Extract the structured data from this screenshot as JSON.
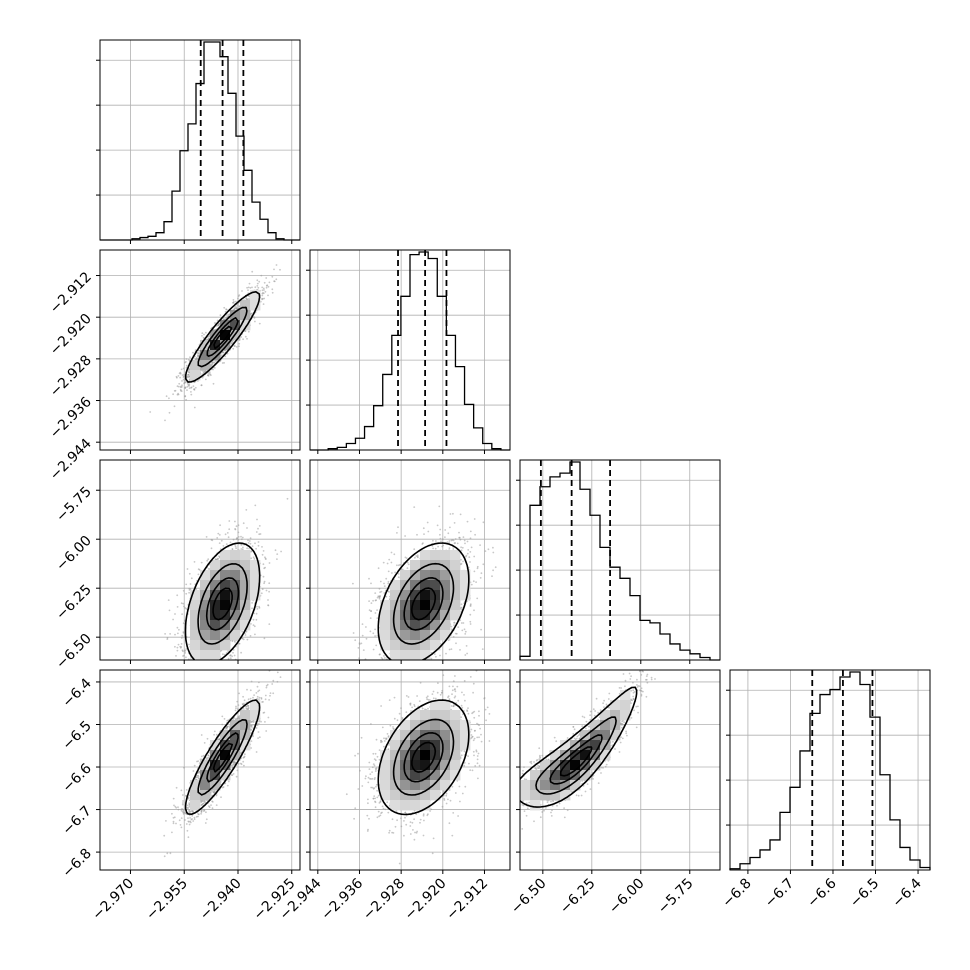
{
  "chart_data": {
    "type": "corner",
    "title": "",
    "parameters": [
      {
        "ticks": [
          "-2.970",
          "-2.955",
          "-2.940",
          "-2.925"
        ],
        "range": [
          -2.9785,
          -2.9227
        ],
        "quantiles": [
          -2.9504,
          -2.9443,
          -2.9385
        ],
        "hist": [
          0,
          0,
          0,
          0,
          1,
          2,
          3,
          6,
          15,
          40,
          73,
          95,
          128,
          162,
          162,
          150,
          120,
          85,
          57,
          31,
          17,
          6,
          1,
          0,
          0
        ],
        "hist_y_gridlines": 4
      },
      {
        "ticks": [
          "-2.944",
          "-2.936",
          "-2.928",
          "-2.920",
          "-2.912"
        ],
        "range": [
          -2.9455,
          -2.9071
        ],
        "quantiles": [
          -2.9286,
          -2.9234,
          -2.9193
        ],
        "hist": [
          0,
          0,
          1,
          2,
          5,
          9,
          18,
          34,
          58,
          88,
          118,
          150,
          152,
          147,
          118,
          88,
          64,
          35,
          17,
          5,
          1,
          0
        ],
        "hist_y_gridlines": 4
      },
      {
        "ticks": [
          "-6.50",
          "-6.25",
          "-6.00",
          "-5.75"
        ],
        "range": [
          -6.6165,
          -5.5957
        ],
        "quantiles": [
          -6.5099,
          -6.3529,
          -6.1567
        ],
        "hist": [
          3,
          125,
          140,
          148,
          151,
          160,
          138,
          117,
          91,
          75,
          66,
          52,
          32,
          30,
          21,
          13,
          8,
          5,
          2,
          0
        ],
        "hist_y_gridlines": 4
      },
      {
        "ticks": [
          "-6.8",
          "-6.7",
          "-6.6",
          "-6.5",
          "-6.4"
        ],
        "range": [
          -6.8421,
          -6.3719
        ],
        "quantiles": [
          -6.6487,
          -6.5766,
          -6.5072
        ],
        "hist": [
          1,
          5,
          10,
          16,
          24,
          46,
          66,
          95,
          125,
          140,
          144,
          154,
          158,
          148,
          122,
          76,
          40,
          18,
          8,
          2
        ],
        "hist_y_gridlines": 4
      }
    ],
    "pairs": [
      {
        "row": 1,
        "col": 0,
        "n_points": 2200,
        "density": {
          "type": "gaussian",
          "mean": [
            -2.9443,
            -2.9238
          ],
          "sd": [
            0.005,
            0.0042
          ],
          "corr": 0.9
        },
        "contour_levels": [
          0.118,
          0.393,
          0.675,
          0.865
        ]
      },
      {
        "row": 2,
        "col": 0,
        "n_points": 2200,
        "density": {
          "type": "gaussian",
          "mean": [
            -2.9443,
            -6.33
          ],
          "sd": [
            0.005,
            0.15
          ],
          "corr": 0.45
        },
        "contour_levels": [
          0.118,
          0.393,
          0.675,
          0.865
        ]
      },
      {
        "row": 2,
        "col": 1,
        "n_points": 2200,
        "density": {
          "type": "gaussian",
          "mean": [
            -2.9237,
            -6.33
          ],
          "sd": [
            0.0042,
            0.15
          ],
          "corr": 0.4
        },
        "contour_levels": [
          0.118,
          0.393,
          0.675,
          0.865
        ]
      },
      {
        "row": 3,
        "col": 0,
        "n_points": 2200,
        "density": {
          "type": "gaussian",
          "mean": [
            -2.9443,
            -6.577
          ],
          "sd": [
            0.005,
            0.065
          ],
          "corr": 0.88
        },
        "contour_levels": [
          0.118,
          0.393,
          0.675,
          0.865
        ]
      },
      {
        "row": 3,
        "col": 1,
        "n_points": 2200,
        "density": {
          "type": "gaussian",
          "mean": [
            -2.9237,
            -6.577
          ],
          "sd": [
            0.0042,
            0.065
          ],
          "corr": 0.4
        },
        "contour_levels": [
          0.118,
          0.393,
          0.675,
          0.865
        ]
      },
      {
        "row": 3,
        "col": 2,
        "n_points": 2200,
        "density": {
          "type": "banana",
          "mean": [
            -6.33,
            -6.577
          ],
          "sd": [
            0.15,
            0.065
          ],
          "corr": 0.87
        },
        "contour_levels": [
          0.118,
          0.393,
          0.675,
          0.865
        ]
      }
    ],
    "grid": true,
    "colors": {
      "line": "#000000",
      "grid": "#b0b0b0",
      "points": "#9a9a9a",
      "density_dark": "#000000",
      "background": "#ffffff"
    }
  }
}
